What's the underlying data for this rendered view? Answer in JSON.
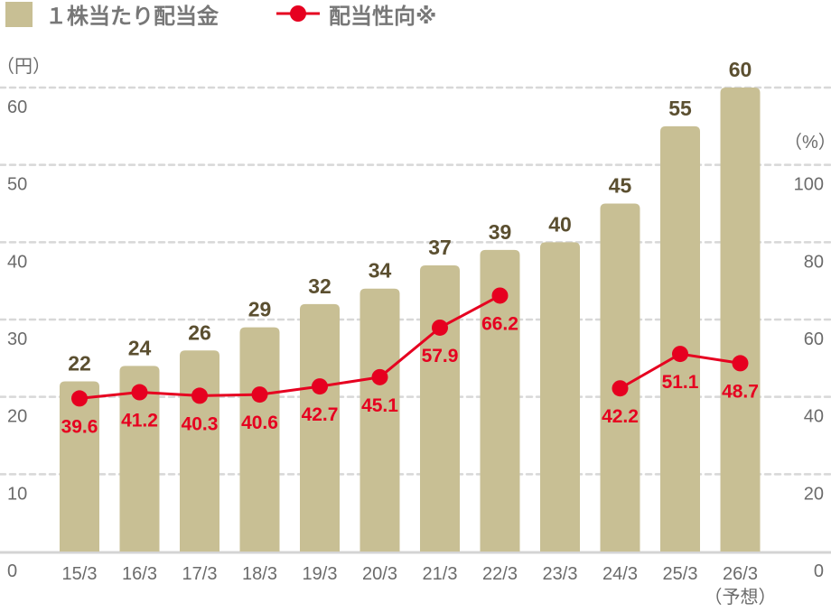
{
  "chart_data": {
    "type": "bar+line",
    "legend": {
      "position": "top-left",
      "items": [
        {
          "label": "１株当たり配当金",
          "kind": "bar",
          "color": "#c8bf94"
        },
        {
          "label": "配当性向※",
          "kind": "line",
          "color": "#e60020"
        }
      ]
    },
    "categories": [
      "15/3",
      "16/3",
      "17/3",
      "18/3",
      "19/3",
      "20/3",
      "21/3",
      "22/3",
      "23/3",
      "24/3",
      "25/3",
      "26/3"
    ],
    "category_note": {
      "26/3": "（予想）"
    },
    "left_axis": {
      "unit_label": "（円）",
      "range": [
        0,
        60
      ],
      "ticks": [
        0,
        10,
        20,
        30,
        40,
        50,
        60
      ]
    },
    "right_axis": {
      "unit_label": "（%）",
      "range": [
        0,
        120
      ],
      "ticks": [
        0,
        20,
        40,
        60,
        80,
        100
      ]
    },
    "grid": true,
    "series": [
      {
        "name": "１株当たり配当金",
        "type": "bar",
        "axis": "left",
        "color": "#c8bf94",
        "values": [
          22,
          24,
          26,
          29,
          32,
          34,
          37,
          39,
          40,
          45,
          55,
          60
        ]
      },
      {
        "name": "配当性向※",
        "type": "line",
        "axis": "right",
        "color": "#e60020",
        "values": [
          39.6,
          41.2,
          40.3,
          40.6,
          42.7,
          45.1,
          57.9,
          66.2,
          null,
          42.2,
          51.1,
          48.7
        ]
      }
    ]
  }
}
